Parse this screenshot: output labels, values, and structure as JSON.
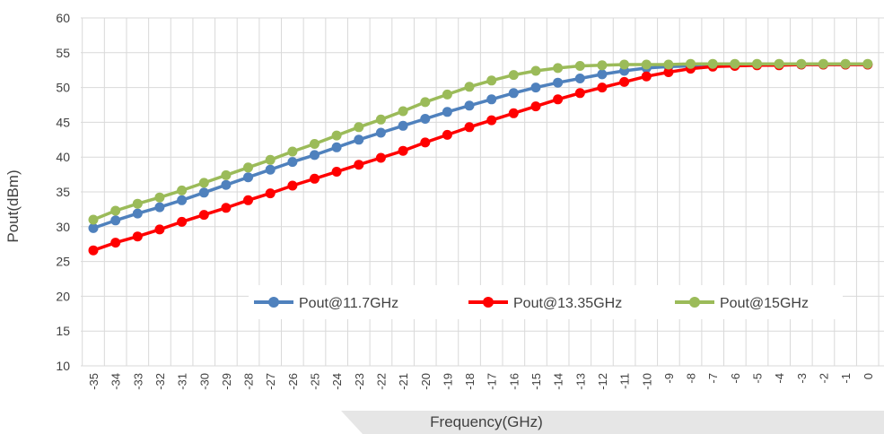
{
  "chart_data": {
    "type": "line",
    "title": "",
    "xlabel": "Frequency(GHz)",
    "ylabel": "Pout(dBm)",
    "ylim": [
      10,
      60
    ],
    "yticks": [
      10,
      15,
      20,
      25,
      30,
      35,
      40,
      45,
      50,
      55,
      60
    ],
    "grid": true,
    "legend_position": "lower-right inside plot",
    "categories": [
      "-35",
      "-34",
      "-33",
      "-32",
      "-31",
      "-30",
      "-29",
      "-28",
      "-27",
      "-26",
      "-25",
      "-24",
      "-23",
      "-22",
      "-21",
      "-20",
      "-19",
      "-18",
      "-17",
      "-16",
      "-15",
      "-14",
      "-13",
      "-12",
      "-11",
      "-10",
      "-9",
      "-8",
      "-7",
      "-6",
      "-5",
      "-4",
      "-3",
      "-2",
      "-1",
      "0"
    ],
    "series": [
      {
        "name": "Pout@11.7GHz",
        "color": "#4f81bd",
        "values": [
          29.8,
          30.9,
          31.9,
          32.8,
          33.8,
          34.9,
          36.0,
          37.1,
          38.2,
          39.3,
          40.3,
          41.4,
          42.5,
          43.5,
          44.5,
          45.5,
          46.5,
          47.4,
          48.3,
          49.2,
          50.0,
          50.7,
          51.3,
          51.9,
          52.4,
          52.8,
          53.0,
          53.1,
          53.2,
          53.2,
          53.3,
          53.3,
          53.3,
          53.3,
          53.3,
          53.3
        ]
      },
      {
        "name": "Pout@13.35GHz",
        "color": "#ff0000",
        "values": [
          26.6,
          27.7,
          28.6,
          29.6,
          30.7,
          31.7,
          32.7,
          33.8,
          34.8,
          35.9,
          36.9,
          37.9,
          38.9,
          39.9,
          40.9,
          42.1,
          43.2,
          44.3,
          45.3,
          46.3,
          47.3,
          48.3,
          49.2,
          50.0,
          50.8,
          51.6,
          52.2,
          52.7,
          53.0,
          53.1,
          53.2,
          53.2,
          53.3,
          53.3,
          53.3,
          53.3
        ]
      },
      {
        "name": "Pout@15GHz",
        "color": "#9bbb59",
        "values": [
          31.0,
          32.3,
          33.3,
          34.2,
          35.2,
          36.3,
          37.4,
          38.5,
          39.6,
          40.8,
          41.9,
          43.1,
          44.3,
          45.4,
          46.6,
          47.9,
          49.0,
          50.1,
          51.0,
          51.8,
          52.4,
          52.8,
          53.1,
          53.2,
          53.3,
          53.3,
          53.3,
          53.4,
          53.4,
          53.4,
          53.4,
          53.4,
          53.4,
          53.4,
          53.4,
          53.4
        ]
      }
    ]
  }
}
